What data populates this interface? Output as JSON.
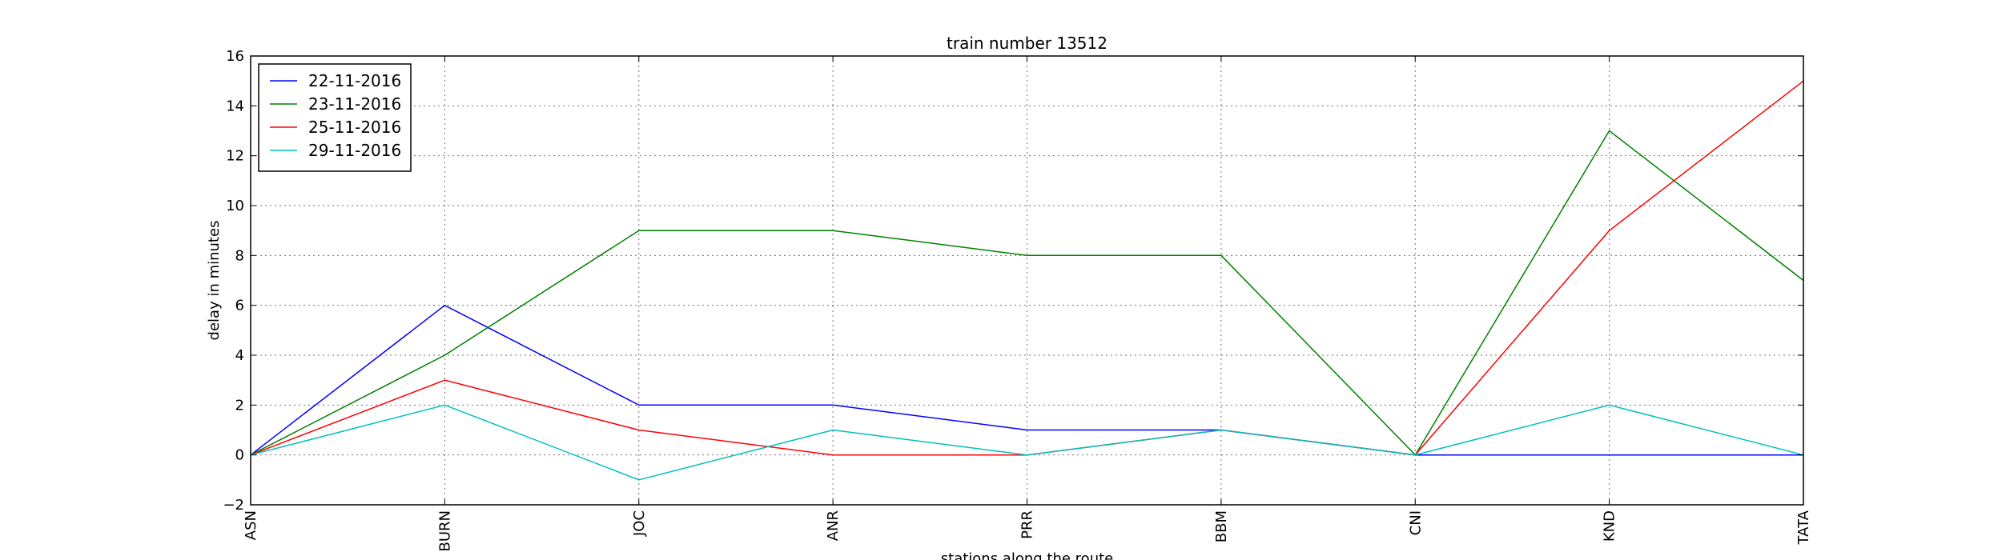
{
  "chart_data": {
    "type": "line",
    "title": "train number 13512",
    "xlabel": "stations along the route",
    "ylabel": "delay in minutes",
    "categories": [
      "ASN",
      "BURN",
      "JOC",
      "ANR",
      "PRR",
      "BBM",
      "CNI",
      "KND",
      "TATA"
    ],
    "ylim": [
      -2,
      16
    ],
    "yticks": [
      -2,
      0,
      2,
      4,
      6,
      8,
      10,
      12,
      14,
      16
    ],
    "ytick_labels": [
      "−2",
      "0",
      "2",
      "4",
      "6",
      "8",
      "10",
      "12",
      "14",
      "16"
    ],
    "grid": true,
    "legend_position": "top-left",
    "series": [
      {
        "name": "22-11-2016",
        "color": "#0000ff",
        "values": [
          0,
          6,
          2,
          2,
          1,
          1,
          0,
          0,
          0
        ]
      },
      {
        "name": "23-11-2016",
        "color": "#008000",
        "values": [
          0,
          4,
          9,
          9,
          8,
          8,
          0,
          13,
          7
        ]
      },
      {
        "name": "25-11-2016",
        "color": "#ff0000",
        "values": [
          0,
          3,
          1,
          0,
          0,
          1,
          0,
          9,
          15
        ]
      },
      {
        "name": "29-11-2016",
        "color": "#00bfbf",
        "values": [
          0,
          2,
          -1,
          1,
          0,
          1,
          0,
          2,
          0
        ]
      }
    ]
  }
}
